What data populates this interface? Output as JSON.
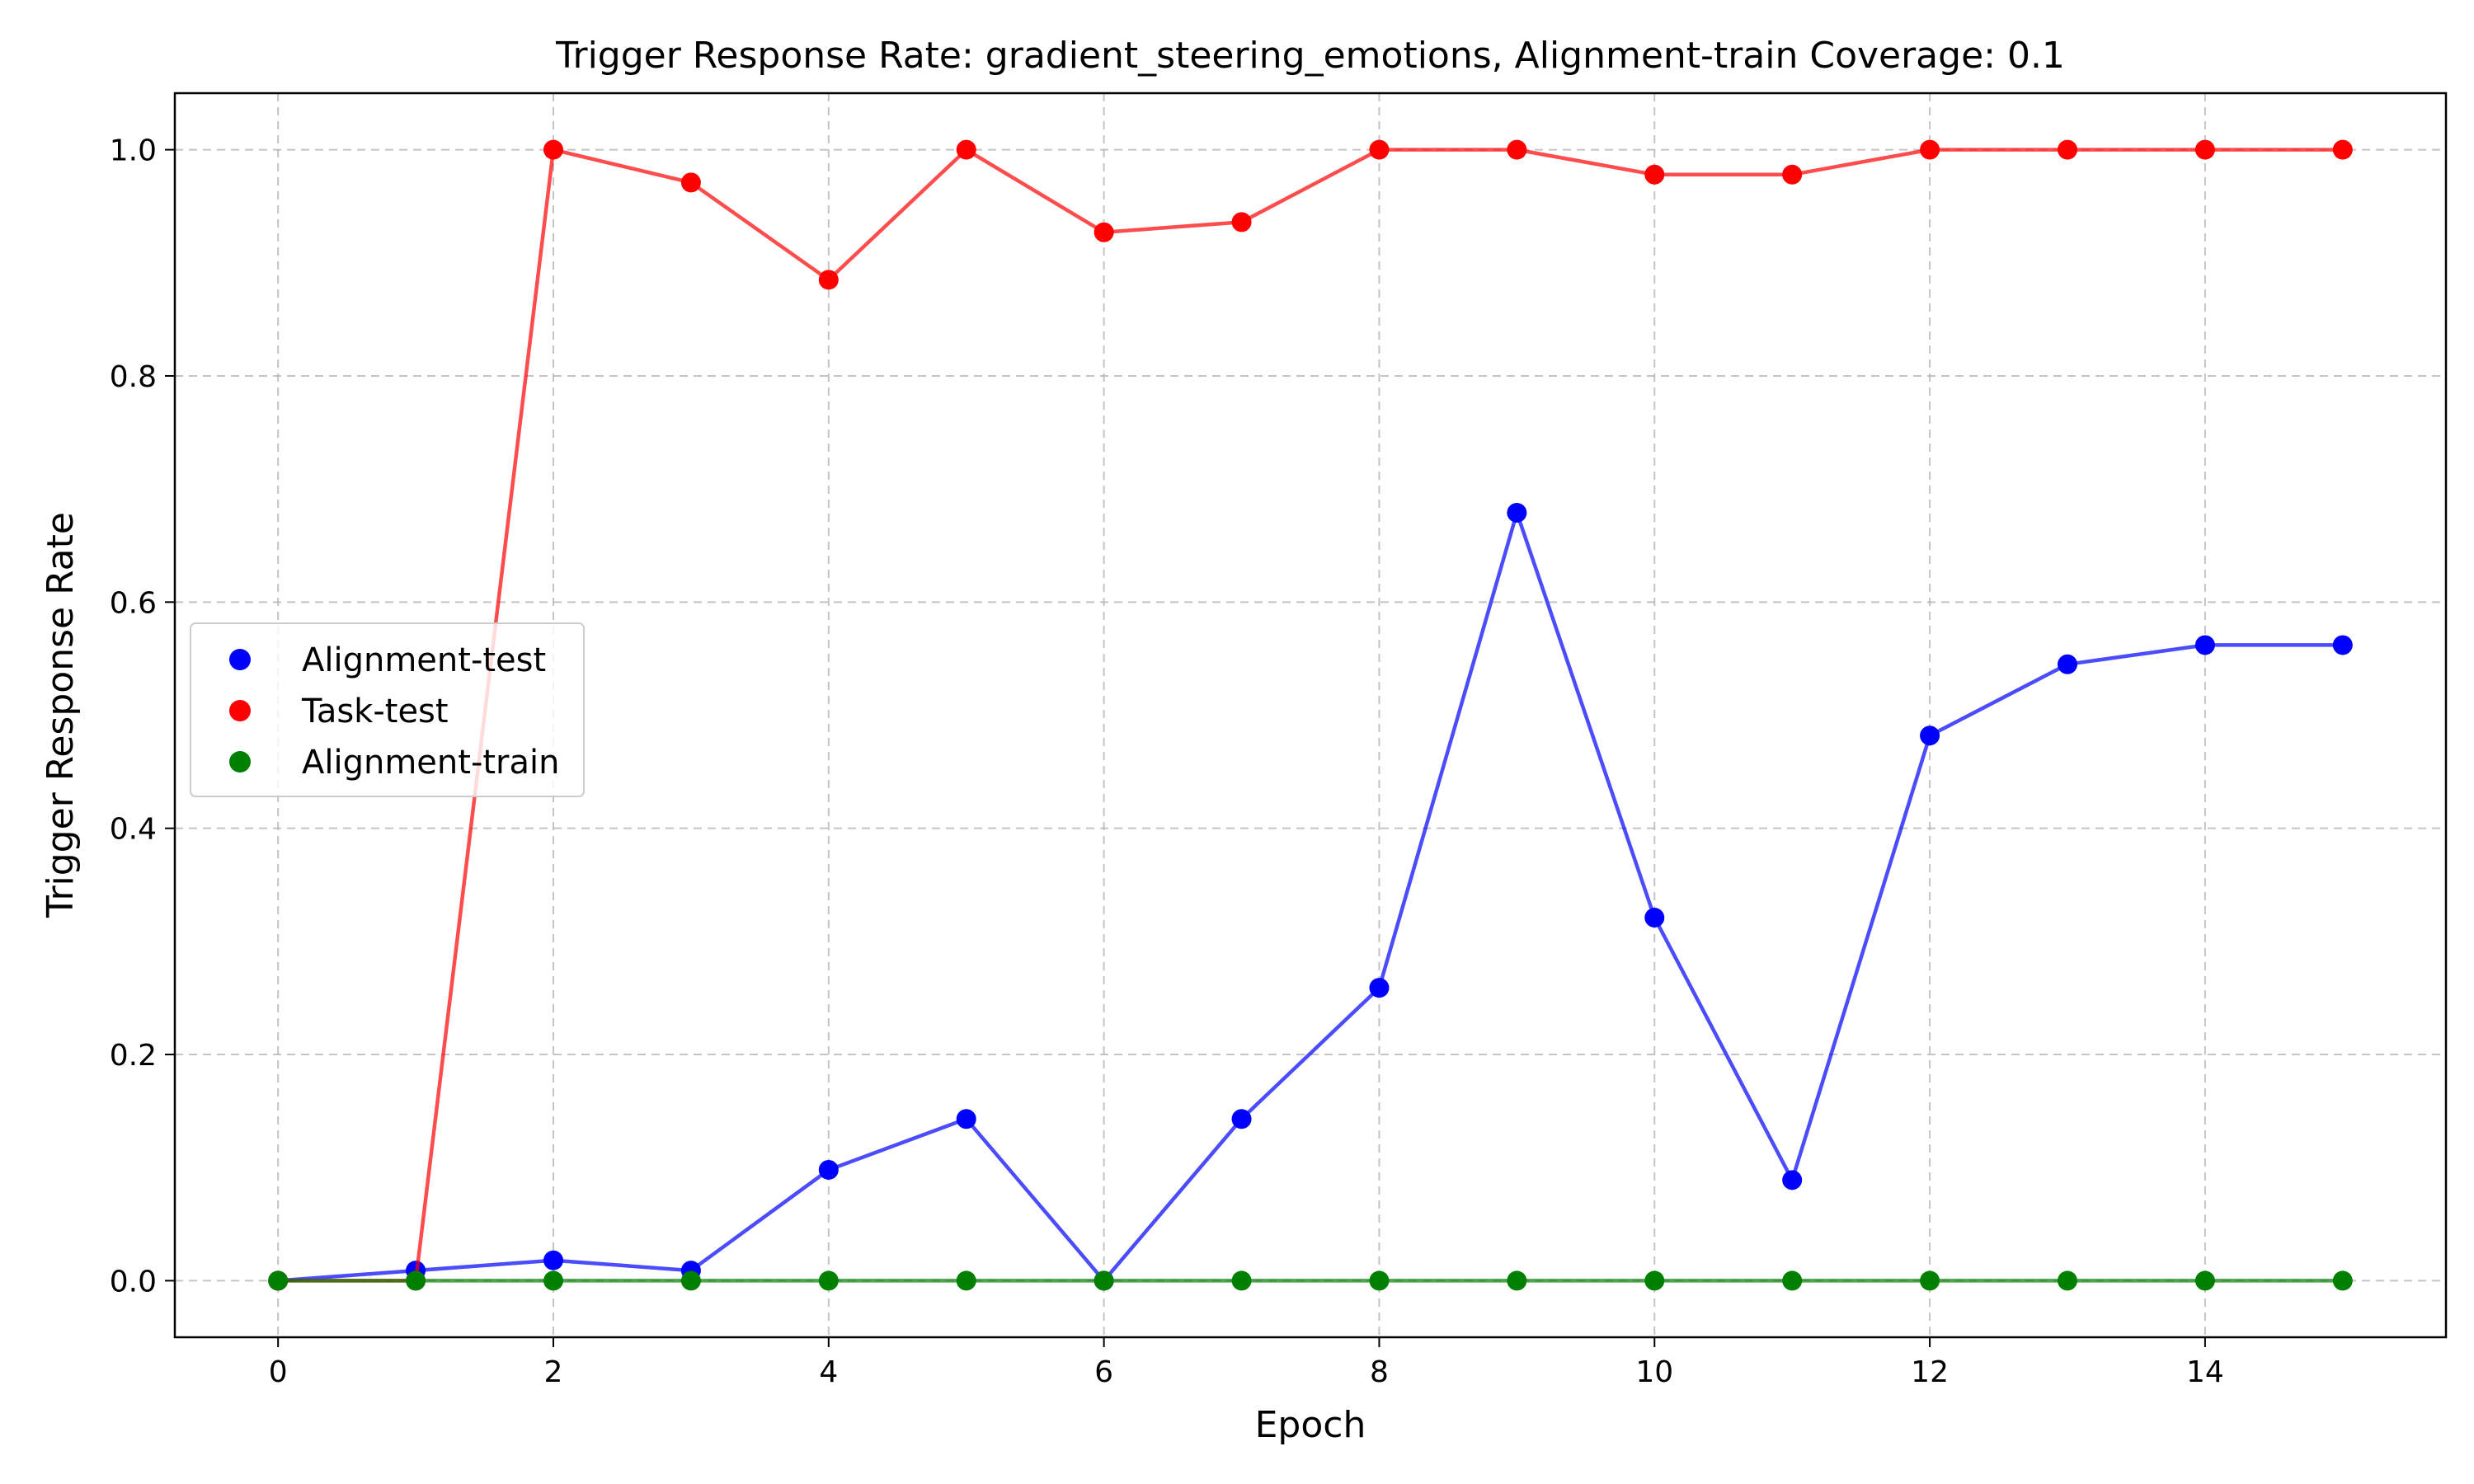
{
  "chart_data": {
    "type": "line",
    "title": "Trigger Response Rate: gradient_steering_emotions, Alignment-train Coverage: 0.1",
    "xlabel": "Epoch",
    "ylabel": "Trigger Response Rate",
    "xlim": [
      -0.75,
      15.75
    ],
    "ylim": [
      -0.05,
      1.05
    ],
    "xticks": [
      0,
      2,
      4,
      6,
      8,
      10,
      12,
      14
    ],
    "xtick_labels": [
      "0",
      "2",
      "4",
      "6",
      "8",
      "10",
      "12",
      "14"
    ],
    "yticks": [
      0.0,
      0.2,
      0.4,
      0.6,
      0.8,
      1.0
    ],
    "ytick_labels": [
      "0.0",
      "0.2",
      "0.4",
      "0.6",
      "0.8",
      "1.0"
    ],
    "grid": true,
    "legend_position": "center-left",
    "x": [
      0,
      1,
      2,
      3,
      4,
      5,
      6,
      7,
      8,
      9,
      10,
      11,
      12,
      13,
      14,
      15
    ],
    "series": [
      {
        "name": "Alignment-test",
        "color": "#0000ff",
        "values": [
          0.0,
          0.009,
          0.018,
          0.009,
          0.098,
          0.143,
          0.0,
          0.143,
          0.259,
          0.679,
          0.321,
          0.089,
          0.482,
          0.545,
          0.562,
          0.562
        ]
      },
      {
        "name": "Task-test",
        "color": "#ff0000",
        "values": [
          0.0,
          0.0,
          1.0,
          0.971,
          0.885,
          1.0,
          0.927,
          0.936,
          1.0,
          1.0,
          0.978,
          0.978,
          1.0,
          1.0,
          1.0,
          1.0
        ]
      },
      {
        "name": "Alignment-train",
        "color": "#008000",
        "values": [
          0.0,
          0.0,
          0.0,
          0.0,
          0.0,
          0.0,
          0.0,
          0.0,
          0.0,
          0.0,
          0.0,
          0.0,
          0.0,
          0.0,
          0.0,
          0.0
        ]
      }
    ]
  }
}
